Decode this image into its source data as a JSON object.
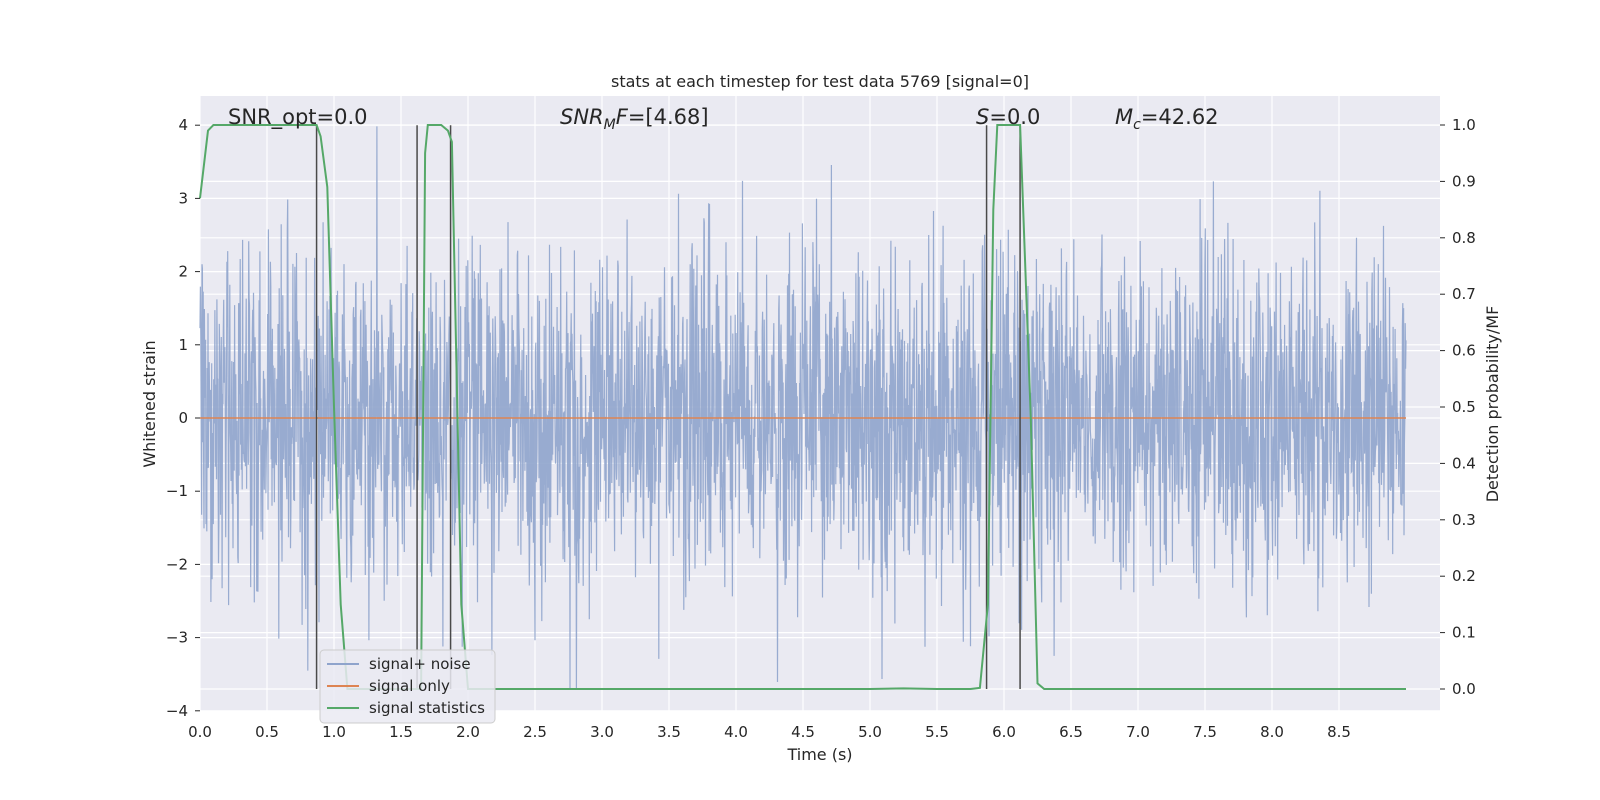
{
  "chart_data": {
    "type": "line",
    "title": "stats at each timestep for test data 5769 [signal=0]",
    "xlabel": "Time (s)",
    "ylabel": "Whitened strain",
    "y2label": "Detection probability/MF",
    "xlim": [
      0.0,
      9.0
    ],
    "ylim": [
      -4.0,
      4.0
    ],
    "y2lim": [
      -0.05,
      1.05
    ],
    "xticks": [
      "0.0",
      "0.5",
      "1.0",
      "1.5",
      "2.0",
      "2.5",
      "3.0",
      "3.5",
      "4.0",
      "4.5",
      "5.0",
      "5.5",
      "6.0",
      "6.5",
      "7.0",
      "7.5",
      "8.0",
      "8.5"
    ],
    "yticks": [
      "4",
      "3",
      "2",
      "1",
      "0",
      "−1",
      "−2",
      "−3",
      "−4"
    ],
    "y2ticks": [
      "1.0",
      "0.9",
      "0.8",
      "0.7",
      "0.6",
      "0.5",
      "0.4",
      "0.3",
      "0.2",
      "0.1",
      "0.0"
    ],
    "grid": true,
    "legend_position": "lower-left",
    "annotations": {
      "snr_opt": "SNR_opt=0.0",
      "snr_mf": "=[4.68]",
      "snr_mf_symbol": "SNR",
      "snr_mf_sub": "M",
      "snr_mf_tail": "F",
      "s_symbol": "S",
      "s_value": "=0.0",
      "mc_symbol": "M",
      "mc_sub": "c",
      "mc_value": "=42.62"
    },
    "series": [
      {
        "name": "signal+ noise",
        "color": "#8fa4cc",
        "description_values": "dense whitened noise, roughly within [-3.7, 4.0]"
      },
      {
        "name": "signal only",
        "color": "#dd8452",
        "x": [
          0.0,
          9.0
        ],
        "y": [
          0.0,
          0.0
        ]
      },
      {
        "name": "signal statistics",
        "color": "#55a868",
        "axis": "right",
        "x": [
          0.0,
          0.06,
          0.1,
          0.15,
          0.3,
          0.5,
          0.7,
          0.87,
          0.9,
          0.95,
          1.0,
          1.05,
          1.1,
          1.2,
          1.5,
          1.62,
          1.65,
          1.68,
          1.7,
          1.8,
          1.85,
          1.88,
          1.95,
          2.0,
          2.5,
          3.0,
          4.0,
          5.0,
          5.25,
          5.5,
          5.75,
          5.82,
          5.88,
          5.92,
          5.95,
          6.05,
          6.12,
          6.2,
          6.25,
          6.3,
          6.5,
          7.0,
          8.0,
          9.0
        ],
        "y": [
          0.87,
          0.99,
          1.0,
          1.0,
          1.0,
          1.0,
          1.0,
          1.0,
          0.98,
          0.89,
          0.5,
          0.15,
          0.0,
          0.0,
          0.0,
          0.0,
          0.0,
          0.95,
          1.0,
          1.0,
          0.99,
          0.97,
          0.15,
          0.0,
          0.0,
          0.0,
          0.0,
          0.0,
          0.001,
          0.0,
          0.0,
          0.002,
          0.15,
          0.85,
          1.0,
          1.0,
          1.0,
          0.48,
          0.01,
          0.0,
          0.0,
          0.0,
          0.0,
          0.0
        ]
      }
    ],
    "vertical_lines_x": [
      0.87,
      1.62,
      1.87,
      5.87,
      6.12
    ],
    "vertical_lines_color": "#4a4a4a"
  }
}
